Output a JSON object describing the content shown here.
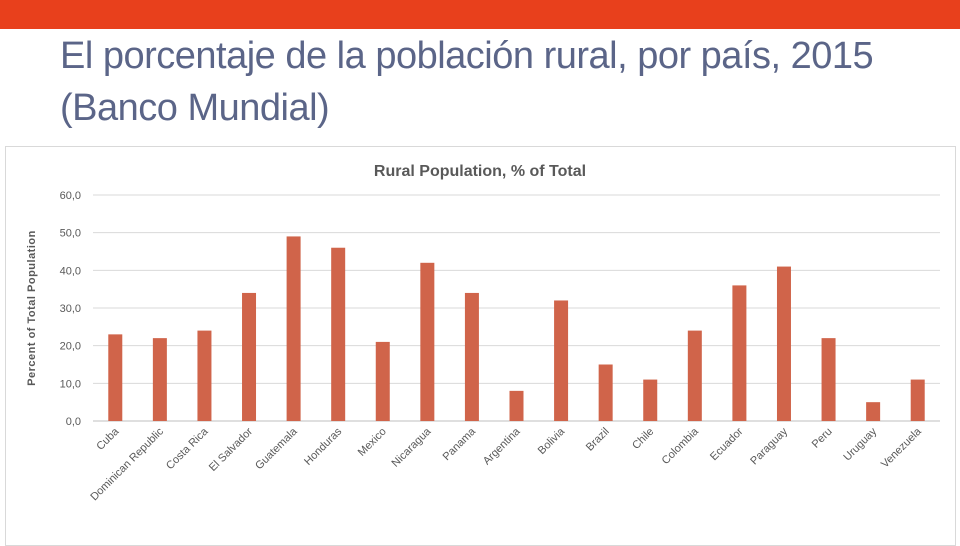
{
  "slide": {
    "title": "El porcentaje de la población rural, por país, 2015 (Banco Mundial)"
  },
  "colors": {
    "accent_bar": "#e8401c",
    "title_text": "#5b6588",
    "bar_fill": "#d0644a",
    "grid": "#d9d9d9"
  },
  "chart_data": {
    "type": "bar",
    "title": "Rural Population, % of Total",
    "xlabel": "",
    "ylabel": "Percent of Total Population",
    "ylim": [
      0,
      60
    ],
    "yticks": [
      "0,0",
      "10,0",
      "20,0",
      "30,0",
      "40,0",
      "50,0",
      "60,0"
    ],
    "grid": true,
    "legend": "none",
    "categories": [
      "Cuba",
      "Dominican Republic",
      "Costa Rica",
      "El Salvador",
      "Guatemala",
      "Honduras",
      "Mexico",
      "Nicaragua",
      "Panama",
      "Argentina",
      "Bolivia",
      "Brazil",
      "Chile",
      "Colombia",
      "Ecuador",
      "Paraguay",
      "Peru",
      "Uruguay",
      "Venezuela"
    ],
    "values": [
      23,
      22,
      24,
      34,
      49,
      46,
      21,
      42,
      34,
      8,
      32,
      15,
      11,
      24,
      36,
      41,
      22,
      5,
      11
    ]
  }
}
